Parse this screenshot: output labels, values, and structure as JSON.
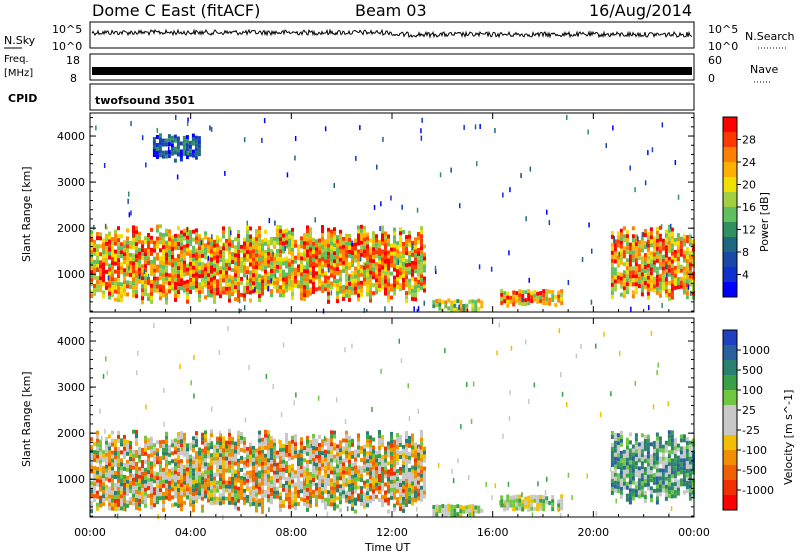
{
  "header": {
    "station": "Dome C East (fitACF)",
    "beam": "Beam 03",
    "date": "16/Aug/2014"
  },
  "nsky_panel": {
    "left_label": "N.Sky",
    "right_label": "N.Search",
    "left_ticks": [
      "10^5",
      "10^0"
    ],
    "right_ticks": [
      "10^5",
      "10^0"
    ]
  },
  "freq_panel": {
    "left_label_line1": "Freq.",
    "left_label_line2": "[MHz]",
    "right_label": "Nave",
    "left_ticks": [
      "18",
      "8"
    ],
    "right_ticks": [
      "60",
      "0"
    ]
  },
  "cpid_panel": {
    "label": "CPID",
    "value": "twofsound 3501"
  },
  "chart_data": [
    {
      "type": "heatmap",
      "panel": "power",
      "ylabel": "Slant Range [km]",
      "colorbar_label": "Power [dB]",
      "ylim": [
        180,
        4500
      ],
      "yticks": [
        1000,
        2000,
        3000,
        4000
      ],
      "xlim": [
        "00:00",
        "24:00"
      ],
      "colorbar_ticks": [
        "28",
        "24",
        "20",
        "16",
        "12",
        "8",
        "4"
      ],
      "colorbar_colors": [
        "#ff0000",
        "#ff3800",
        "#ff8000",
        "#ffb000",
        "#f0e000",
        "#a0d040",
        "#60c060",
        "#309060",
        "#206880",
        "#1848a8",
        "#1030d0",
        "#0000ff"
      ],
      "regions": [
        {
          "t0": 0.0,
          "t1": 13.3,
          "r0": 400,
          "r1": 1900,
          "level": "high"
        },
        {
          "t0": 13.6,
          "t1": 15.6,
          "r0": 250,
          "r1": 450,
          "level": "medium"
        },
        {
          "t0": 16.3,
          "t1": 18.8,
          "r0": 350,
          "r1": 650,
          "level": "high"
        },
        {
          "t0": 20.7,
          "t1": 24.0,
          "r0": 500,
          "r1": 1900,
          "level": "high"
        },
        {
          "t0": 2.5,
          "t1": 4.3,
          "r0": 3500,
          "r1": 4000,
          "level": "low"
        }
      ]
    },
    {
      "type": "heatmap",
      "panel": "velocity",
      "ylabel": "Slant Range [km]",
      "xlabel": "Time UT",
      "colorbar_label": "Velocity [m s^-1]",
      "ylim": [
        180,
        4500
      ],
      "yticks": [
        1000,
        2000,
        3000,
        4000
      ],
      "xlim": [
        "00:00",
        "24:00"
      ],
      "xticks": [
        "00:00",
        "04:00",
        "08:00",
        "12:00",
        "16:00",
        "20:00",
        "00:00"
      ],
      "colorbar_ticks": [
        "1000",
        "500",
        "100",
        "25",
        "-25",
        "-100",
        "-500",
        "-1000"
      ],
      "colorbar_colors": [
        "#2040c0",
        "#2860a0",
        "#2a8070",
        "#3aa048",
        "#70c840",
        "#c8c8c8",
        "#c8c8c8",
        "#f0c000",
        "#f09000",
        "#f06000",
        "#f03000",
        "#ff0000"
      ],
      "regions": [
        {
          "t0": 0.0,
          "t1": 13.3,
          "r0": 300,
          "r1": 1900,
          "level": "mixed"
        },
        {
          "t0": 13.6,
          "t1": 15.6,
          "r0": 250,
          "r1": 450,
          "level": "low"
        },
        {
          "t0": 16.3,
          "t1": 18.8,
          "r0": 350,
          "r1": 650,
          "level": "low"
        },
        {
          "t0": 20.7,
          "t1": 24.0,
          "r0": 500,
          "r1": 1900,
          "level": "positive"
        }
      ]
    }
  ]
}
